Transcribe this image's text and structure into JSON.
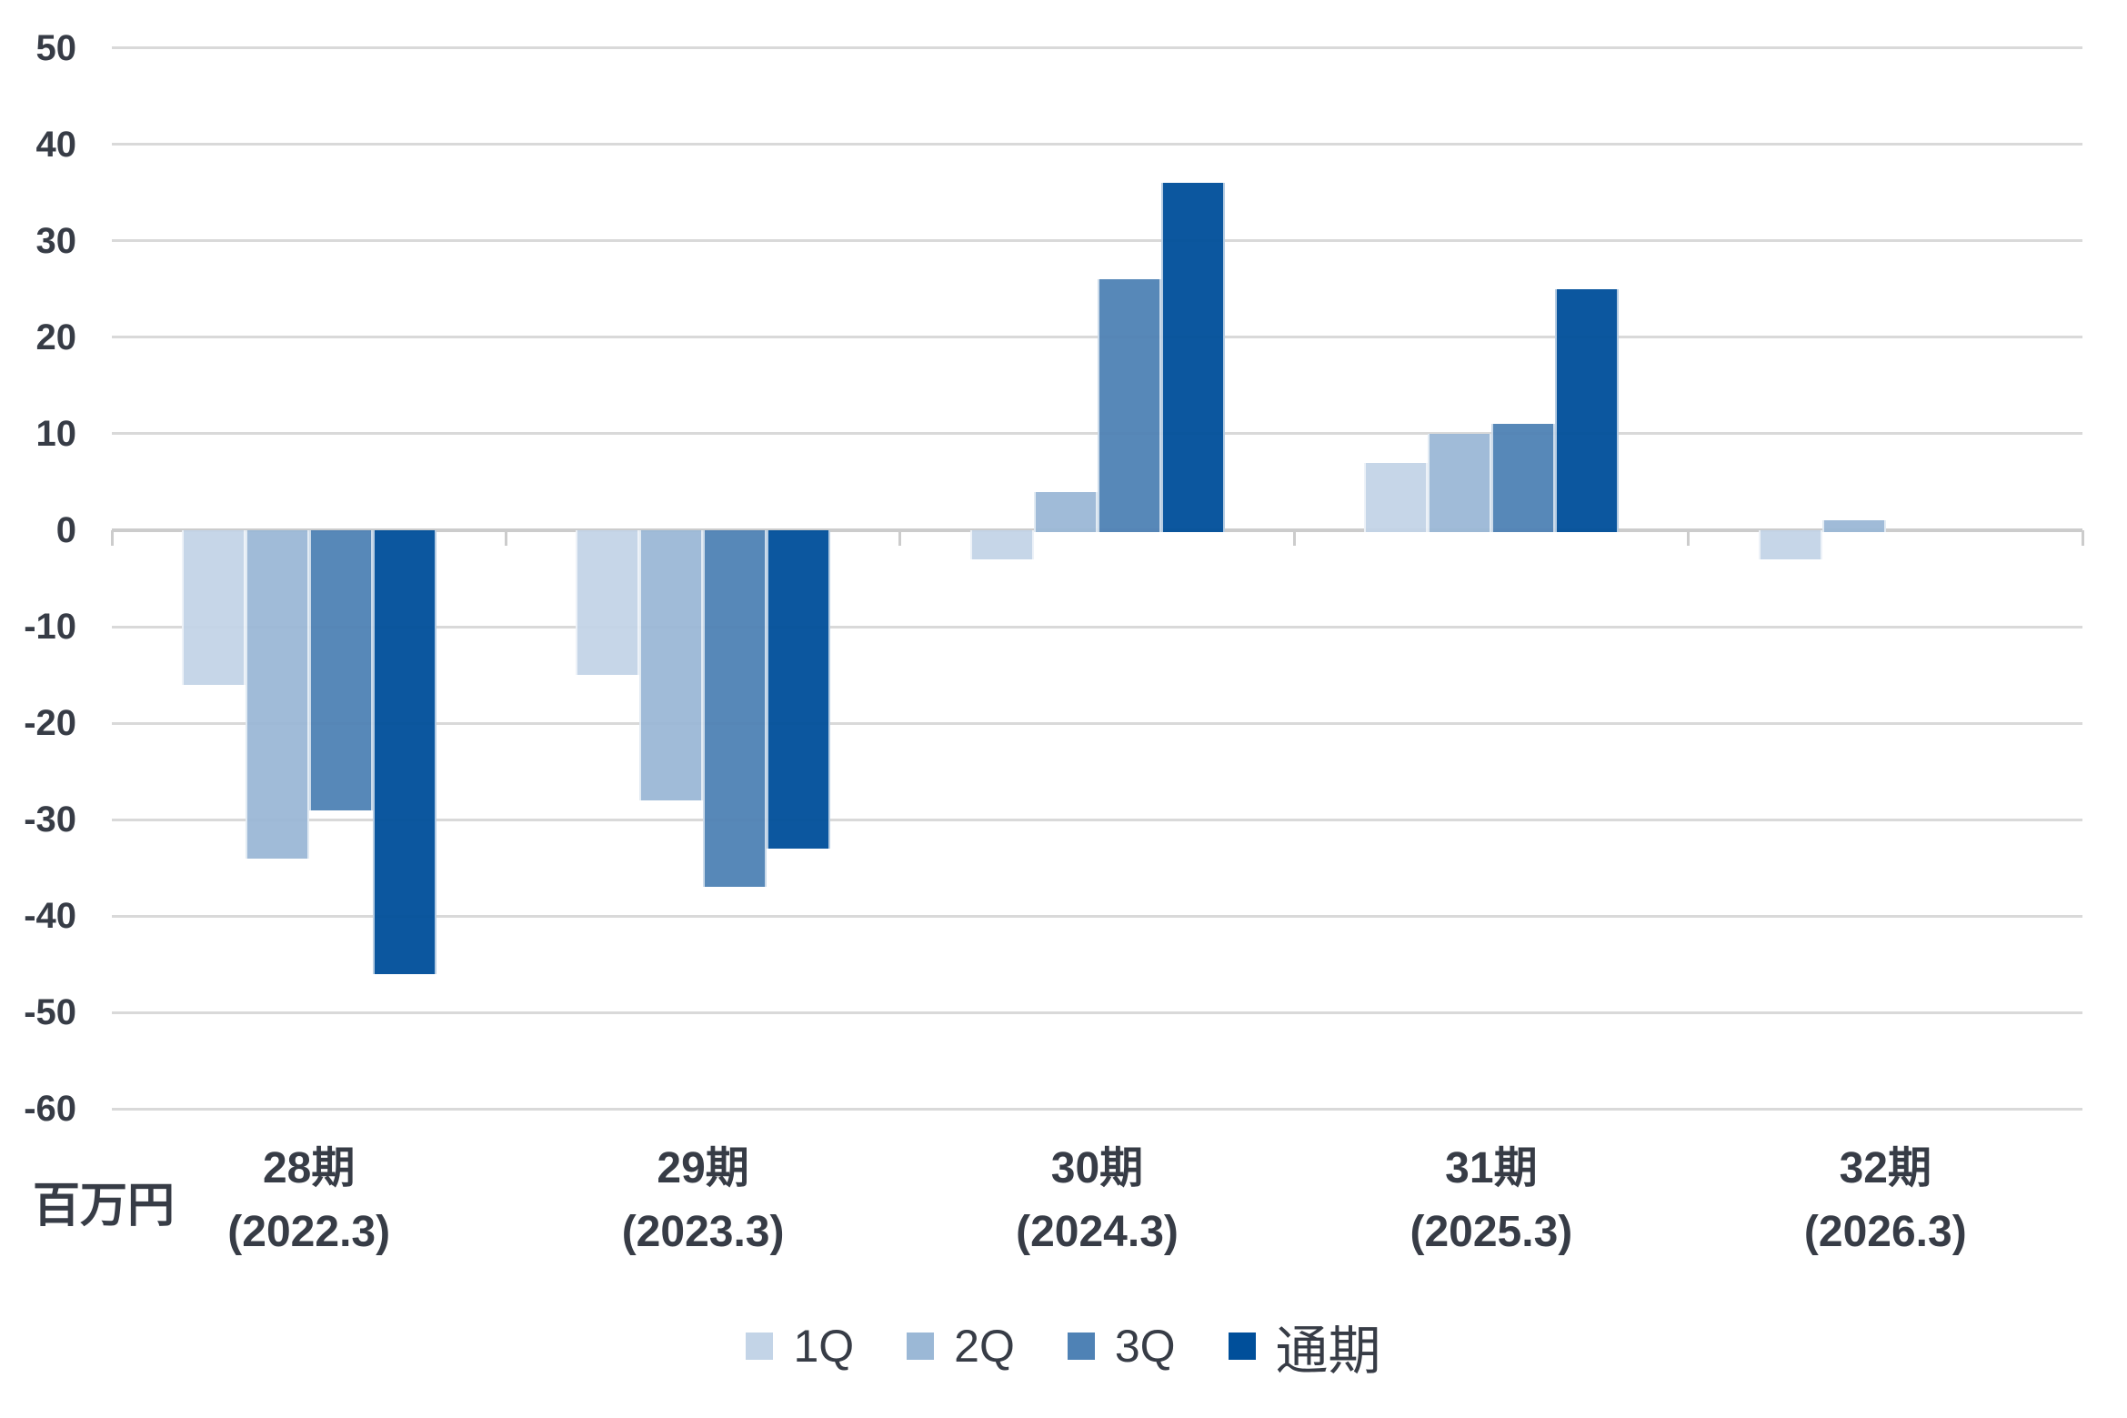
{
  "chart_data": {
    "type": "bar",
    "title": "",
    "ylabel": "百万円",
    "ylim": [
      -60,
      50
    ],
    "y_ticks": [
      50,
      40,
      30,
      20,
      10,
      0,
      -10,
      -20,
      -30,
      -40,
      -50,
      -60
    ],
    "grid": true,
    "legend_position": "bottom",
    "categories": [
      {
        "label": "28期",
        "sub": "(2022.3)"
      },
      {
        "label": "29期",
        "sub": "(2023.3)"
      },
      {
        "label": "30期",
        "sub": "(2024.3)"
      },
      {
        "label": "31期",
        "sub": "(2025.3)"
      },
      {
        "label": "32期",
        "sub": "(2026.3)"
      }
    ],
    "series": [
      {
        "name": "1Q",
        "color": "#c3d4e7",
        "values": [
          -16,
          -15,
          -3,
          7,
          -3
        ]
      },
      {
        "name": "2Q",
        "color": "#9bb8d6",
        "values": [
          -34,
          -28,
          4,
          10,
          1
        ]
      },
      {
        "name": "3Q",
        "color": "#4f82b5",
        "values": [
          -29,
          -37,
          26,
          11,
          null
        ]
      },
      {
        "name": "通期",
        "color": "#004f9a",
        "values": [
          -46,
          -33,
          36,
          25,
          null
        ]
      }
    ],
    "colors": {
      "gridline": "#d9d9d9",
      "zero_line": "#cccccc",
      "text": "#373c46"
    }
  }
}
